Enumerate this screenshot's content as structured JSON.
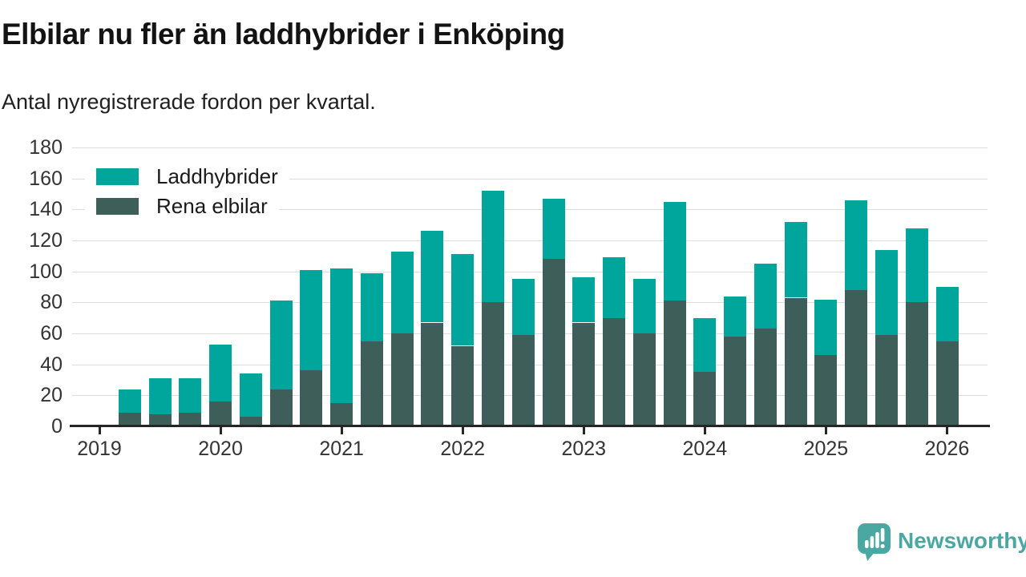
{
  "header": {
    "title": "Elbilar nu fler än laddhybrider i Enköping",
    "subtitle": "Antal nyregistrerade fordon per kvartal."
  },
  "chart_data": {
    "type": "bar",
    "stacked": true,
    "title": "Elbilar nu fler än laddhybrider i Enköping",
    "subtitle": "Antal nyregistrerade fordon per kvartal.",
    "ylim": [
      0,
      180
    ],
    "ytick_step": 20,
    "yticks": [
      0,
      20,
      40,
      60,
      80,
      100,
      120,
      140,
      160,
      180
    ],
    "xticks": [
      "2019",
      "2020",
      "2021",
      "2022",
      "2023",
      "2024",
      "2025",
      "2026"
    ],
    "grid": "horizontal",
    "legend_position": "top-left-inside",
    "categories": [
      "2019 K2",
      "2019 K3",
      "2019 K4",
      "2020 K1",
      "2020 K2",
      "2020 K3",
      "2020 K4",
      "2021 K1",
      "2021 K2",
      "2021 K3",
      "2021 K4",
      "2022 K1",
      "2022 K2",
      "2022 K3",
      "2022 K4",
      "2023 K1",
      "2023 K2",
      "2023 K3",
      "2023 K4",
      "2024 K1",
      "2024 K2",
      "2024 K3",
      "2024 K4",
      "2025 K1",
      "2025 K2",
      "2025 K3",
      "2025 K4",
      "2026 K1"
    ],
    "series": [
      {
        "name": "Laddhybrider",
        "color": "#00a69c",
        "values": [
          15,
          23,
          22,
          37,
          28,
          57,
          65,
          87,
          44,
          53,
          59,
          59,
          72,
          36,
          39,
          29,
          39,
          35,
          64,
          35,
          26,
          42,
          49,
          36,
          58,
          55,
          48,
          35
        ]
      },
      {
        "name": "Rena elbilar",
        "color": "#3e5e59",
        "values": [
          9,
          8,
          9,
          16,
          6,
          24,
          36,
          15,
          55,
          60,
          67,
          52,
          80,
          59,
          108,
          67,
          70,
          60,
          81,
          35,
          58,
          63,
          83,
          46,
          88,
          59,
          80,
          55
        ]
      }
    ],
    "stack_order_bottom_to_top": [
      "Rena elbilar",
      "Laddhybrider"
    ],
    "totals": [
      24,
      31,
      31,
      53,
      34,
      81,
      101,
      102,
      99,
      113,
      126,
      111,
      152,
      95,
      147,
      96,
      109,
      95,
      145,
      70,
      84,
      105,
      132,
      82,
      146,
      114,
      128,
      90
    ]
  },
  "footer": {
    "brand": "Newsworthy",
    "brand_color": "#4ba7a1"
  }
}
